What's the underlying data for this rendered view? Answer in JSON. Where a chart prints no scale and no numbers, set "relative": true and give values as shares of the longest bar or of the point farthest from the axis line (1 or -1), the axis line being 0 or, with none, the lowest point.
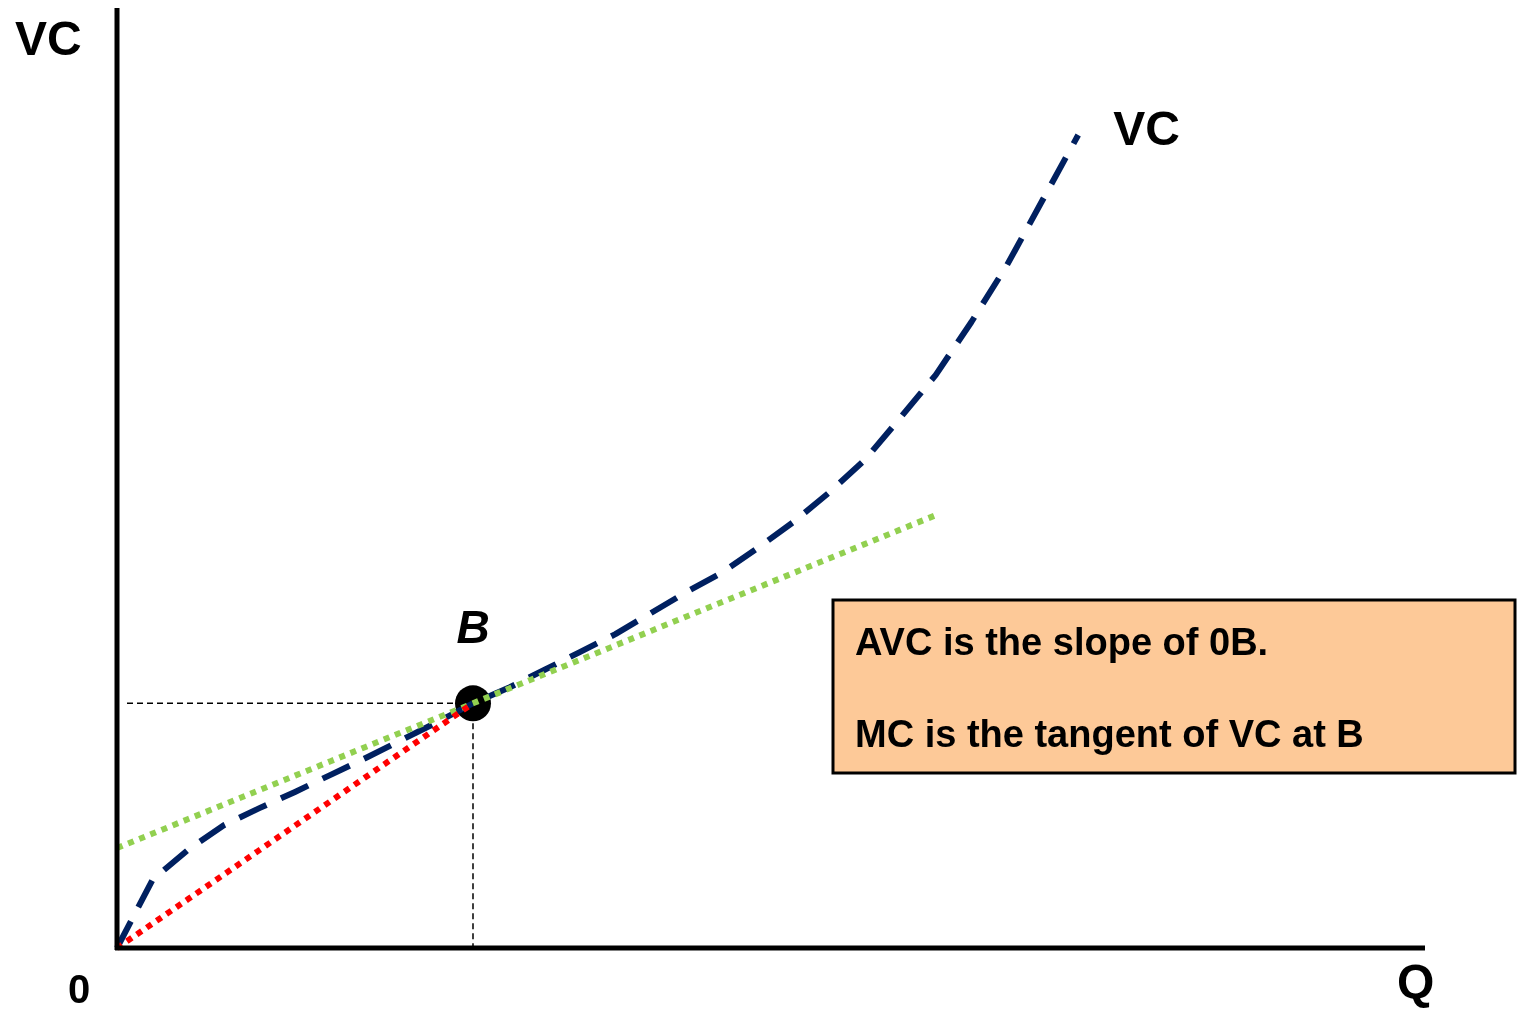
{
  "chart_data": {
    "type": "line",
    "relative": true,
    "ylabel": "VC",
    "xlabel": "Q",
    "annotations": [
      "0",
      "AVC is the slope of 0B.",
      "MC is the tangent of VC at B",
      {
        "text": "B",
        "y": 0.301
      }
    ],
    "categories": [
      null,
      null,
      null,
      null,
      null,
      null,
      null,
      null,
      null,
      null,
      null,
      null,
      null,
      null,
      null,
      null,
      null,
      null,
      null,
      null,
      null,
      null,
      null,
      null,
      null,
      null,
      null,
      null,
      null,
      null,
      null,
      null,
      null,
      null,
      null,
      null,
      null
    ],
    "series": [
      {
        "name": "VC",
        "line_style": "dashed",
        "color": "#002060",
        "values": [
          0,
          0.084,
          0.121,
          0.151,
          0.172,
          0.192,
          0.213,
          0.234,
          0.256,
          0.278,
          0.301,
          0.32,
          0.342,
          0.364,
          0.386,
          0.412,
          0.438,
          0.462,
          0.492,
          0.524,
          0.56,
          0.6,
          0.652,
          0.705,
          0.77,
          0.84,
          0.92,
          1,
          null,
          null,
          null,
          null,
          null,
          null,
          null,
          null,
          null
        ]
      },
      {
        "line_style": "dotted",
        "color": "#92d050",
        "values": [
          0.123,
          0.1408,
          0.1586,
          0.1764,
          0.1942,
          0.212,
          0.2298,
          0.2476,
          0.2654,
          0.2832,
          0.301,
          0.3188,
          0.3366,
          0.3544,
          0.3722,
          0.39,
          0.4078,
          0.4256,
          0.4434,
          0.4612,
          0.479,
          0.4968,
          0.5146,
          0.5324,
          null,
          null,
          null,
          null,
          null,
          null,
          null,
          null,
          null,
          null,
          null,
          null,
          null
        ]
      },
      {
        "line_style": "dotted",
        "color": "#ff0000",
        "values": [
          0,
          0.0301,
          0.0602,
          0.0903,
          0.1204,
          0.1505,
          0.1806,
          0.2107,
          0.2408,
          0.2709,
          0.301,
          null,
          null,
          null,
          null,
          null,
          null,
          null,
          null,
          null,
          null,
          null,
          null,
          null,
          null,
          null,
          null,
          null,
          null,
          null,
          null,
          null,
          null,
          null,
          null,
          null,
          null
        ]
      }
    ]
  }
}
